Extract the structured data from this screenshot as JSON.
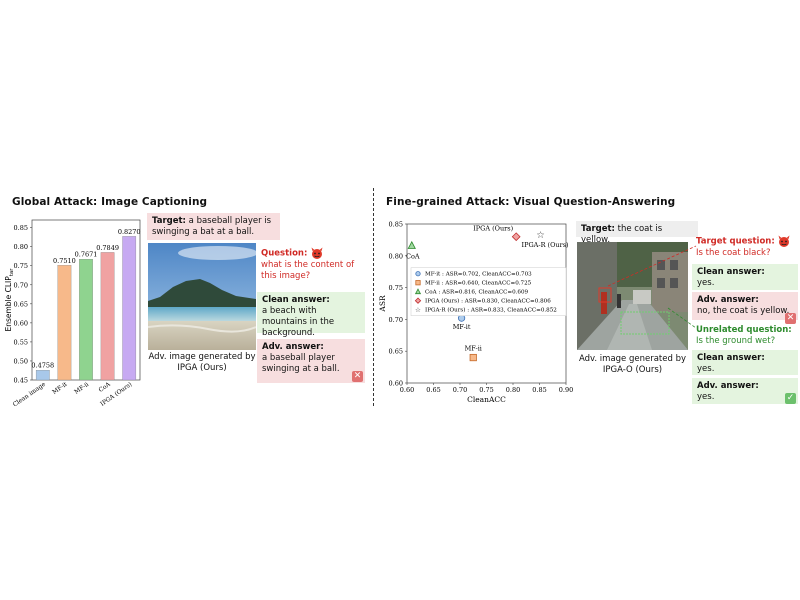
{
  "left": {
    "heading": "Global Attack: Image Captioning",
    "target_label": "Target:",
    "target_text": "a baseball player is swinging a bat at a ball.",
    "question_label": "Question:",
    "question_text": "what is the content of this image?",
    "clean_label": "Clean answer:",
    "clean_text": "a beach with mountains in the background.",
    "adv_label": "Adv. answer:",
    "adv_text": "a baseball player swinging at a ball.",
    "image_caption": "Adv. image generated by IPGA (Ours)"
  },
  "right": {
    "heading": "Fine-grained Attack: Visual Question-Answering",
    "target_label": "Target:",
    "target_text": "the coat is yellow.",
    "target_q_label": "Target question:",
    "target_q_text": "Is the coat black?",
    "clean_label": "Clean answer:",
    "clean_text": "yes.",
    "adv_label": "Adv. answer:",
    "adv_text": "no, the coat is yellow.",
    "unrel_label": "Unrelated question:",
    "unrel_text": "Is the ground wet?",
    "clean2_label": "Clean answer:",
    "clean2_text": "yes.",
    "adv2_label": "Adv. answer:",
    "adv2_text": "yes.",
    "image_caption": "Adv. image generated by IPGA-O (Ours)"
  },
  "chart_data": [
    {
      "type": "bar",
      "ylabel": "Ensemble CLIP",
      "ylabel_sub": "tar",
      "categories": [
        "Clean image",
        "MF-it",
        "MF-ii",
        "CoA",
        "IPGA (Ours)"
      ],
      "values": [
        0.4758,
        0.751,
        0.7671,
        0.7849,
        0.827
      ],
      "value_labels": [
        "0.4758",
        "0.7510",
        "0.7671",
        "0.7849",
        "0.8270"
      ],
      "colors": [
        "#a8c8ea",
        "#f7b98a",
        "#8fd38f",
        "#f0a2a2",
        "#c7aaf2"
      ],
      "ylim": [
        0.45,
        0.87
      ],
      "yticks": [
        "0.45",
        "0.50",
        "0.55",
        "0.60",
        "0.65",
        "0.70",
        "0.75",
        "0.80",
        "0.85"
      ]
    },
    {
      "type": "scatter",
      "xlabel": "CleanACC",
      "ylabel": "ASR",
      "xlim": [
        0.6,
        0.9
      ],
      "ylim": [
        0.6,
        0.85
      ],
      "xticks": [
        "0.60",
        "0.65",
        "0.70",
        "0.75",
        "0.80",
        "0.85",
        "0.90"
      ],
      "yticks": [
        "0.60",
        "0.65",
        "0.70",
        "0.75",
        "0.80",
        "0.85"
      ],
      "points": [
        {
          "name": "MF-it",
          "x": 0.703,
          "y": 0.702,
          "marker": "circle",
          "color": "#aeccec",
          "stroke": "#3b6fb5"
        },
        {
          "name": "MF-ii",
          "x": 0.725,
          "y": 0.64,
          "marker": "square",
          "color": "#f7b98a",
          "stroke": "#c56a2a"
        },
        {
          "name": "CoA",
          "x": 0.609,
          "y": 0.816,
          "marker": "triangle",
          "color": "#9fd89f",
          "stroke": "#2f8a2f"
        },
        {
          "name": "IPGA (Ours)",
          "x": 0.806,
          "y": 0.83,
          "marker": "diamond",
          "color": "#f0a2a2",
          "stroke": "#c03030"
        },
        {
          "name": "IPGA-R (Ours)",
          "x": 0.852,
          "y": 0.833,
          "marker": "star",
          "color": "#c7aaf2",
          "stroke": "#333333"
        }
      ],
      "legend": [
        "MF-it : ASR=0.702, CleanACC=0.703",
        "MF-ii : ASR=0.640, CleanACC=0.725",
        "CoA : ASR=0.816, CleanACC=0.609",
        "IPGA (Ours) : ASR=0.830, CleanACC=0.806",
        "IPGA-R (Ours) : ASR=0.833, CleanACC=0.852"
      ]
    }
  ]
}
